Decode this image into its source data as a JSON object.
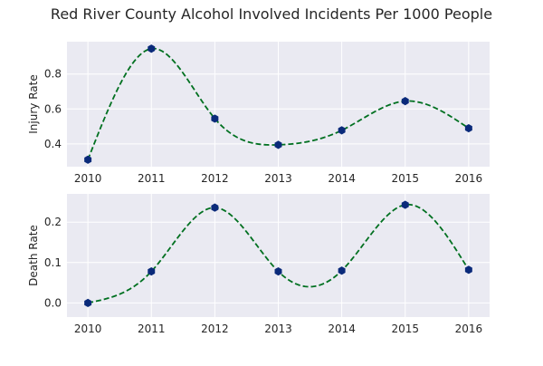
{
  "chart_data": {
    "title": "Red River County Alcohol Involved Incidents Per 1000 People",
    "colors": {
      "background": "#eaeaf2",
      "line": "#007020",
      "marker": "#0a2a7a"
    },
    "grid": true,
    "panels": [
      {
        "type": "line",
        "ylabel": "Injury Rate",
        "x": [
          2010,
          2011,
          2012,
          2013,
          2014,
          2015,
          2016
        ],
        "values": [
          0.31,
          0.945,
          0.545,
          0.395,
          0.478,
          0.645,
          0.49
        ],
        "xlim": [
          2009.67,
          2016.33
        ],
        "ylim": [
          0.27,
          0.985
        ],
        "yticks": [
          "0.4",
          "0.6",
          "0.8"
        ],
        "ytick_values": [
          0.4,
          0.6,
          0.8
        ],
        "xticks": [
          "2010",
          "2011",
          "2012",
          "2013",
          "2014",
          "2015",
          "2016"
        ]
      },
      {
        "type": "line",
        "ylabel": "Death Rate",
        "x": [
          2010,
          2011,
          2012,
          2013,
          2014,
          2015,
          2016
        ],
        "values": [
          0.0,
          0.078,
          0.236,
          0.078,
          0.08,
          0.243,
          0.082
        ],
        "xlim": [
          2009.67,
          2016.33
        ],
        "ylim": [
          -0.035,
          0.27
        ],
        "yticks": [
          "0.0",
          "0.1",
          "0.2"
        ],
        "ytick_values": [
          0.0,
          0.1,
          0.2
        ],
        "xticks": [
          "2010",
          "2011",
          "2012",
          "2013",
          "2014",
          "2015",
          "2016"
        ]
      }
    ]
  }
}
